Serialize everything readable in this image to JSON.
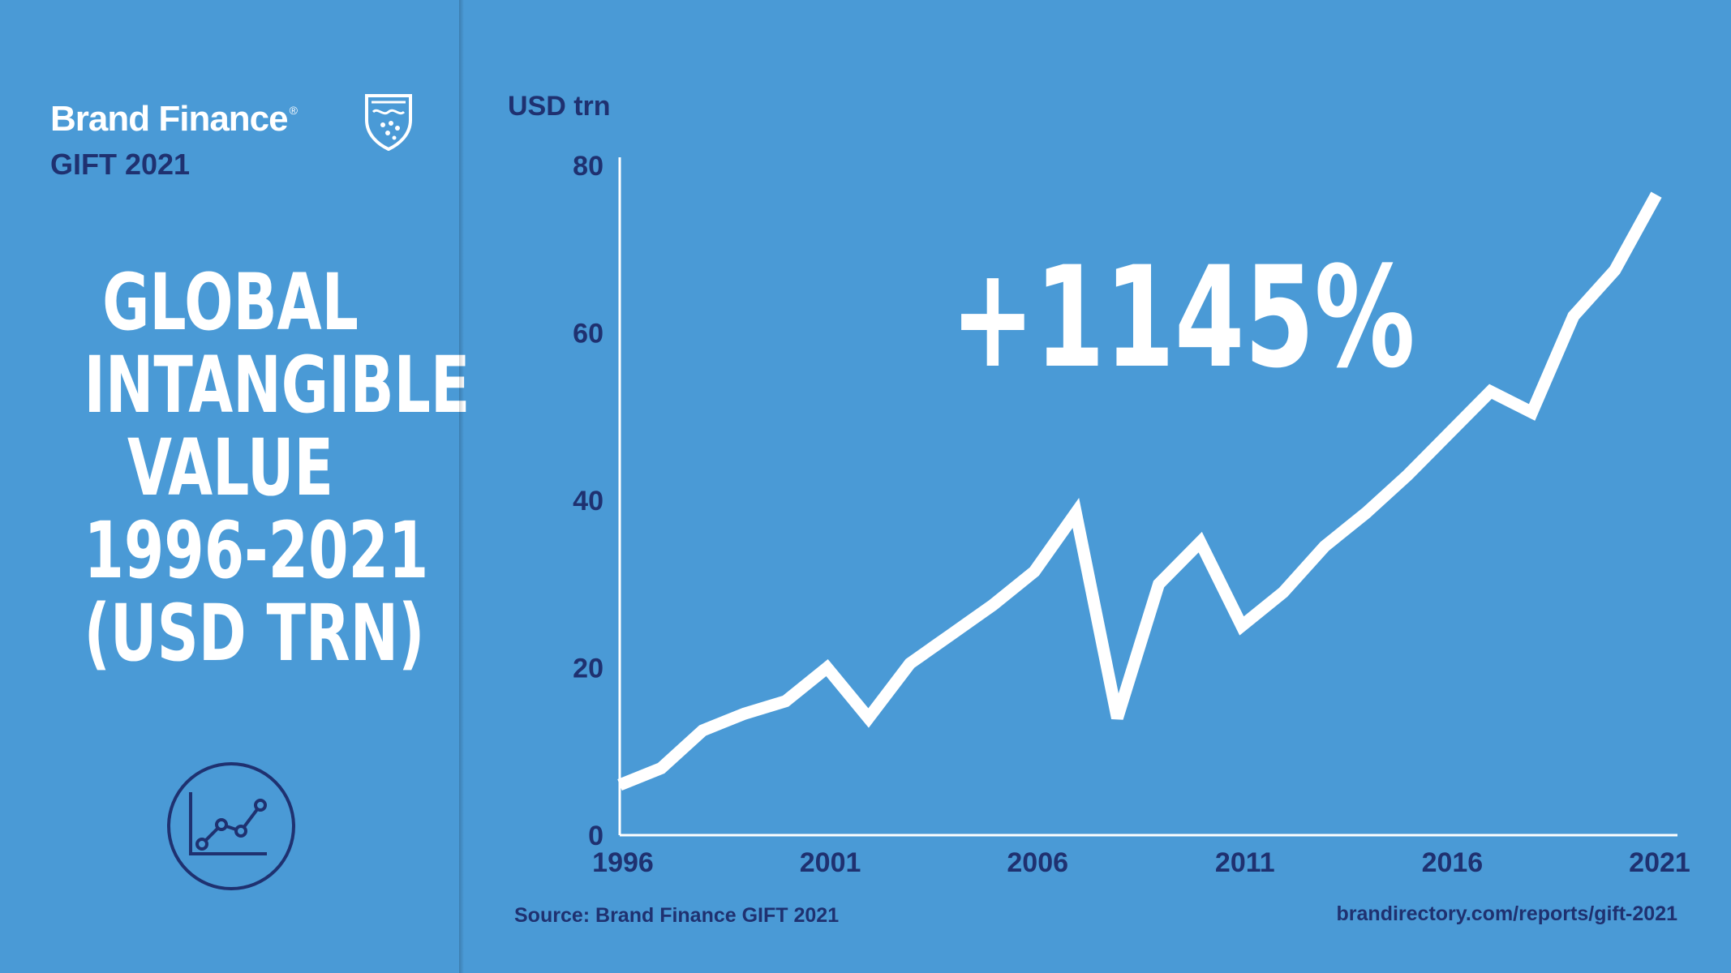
{
  "brand": {
    "name": "Brand Finance",
    "registered_mark": "®",
    "edition": "GIFT 2021"
  },
  "headline": {
    "lines": [
      "GLOBAL",
      "INTANGIBLE",
      "VALUE",
      "1996-2021",
      "(USD TRN)"
    ]
  },
  "growth_label": "+1145%",
  "footer": {
    "source": "Source: Brand Finance GIFT 2021",
    "url": "brandirectory.com/reports/gift-2021"
  },
  "colors": {
    "background": "#4a9ad6",
    "accent_dark": "#1f3170",
    "line": "#ffffff"
  },
  "chart_data": {
    "type": "line",
    "title": "Global Intangible Value 1996-2021 (USD trn)",
    "ylabel": "USD trn",
    "xlabel": "",
    "ylim": [
      0,
      80
    ],
    "xlim": [
      1996,
      2021
    ],
    "yticks": [
      0,
      20,
      40,
      60,
      80
    ],
    "xticks": [
      1996,
      2001,
      2006,
      2011,
      2016,
      2021
    ],
    "grid": false,
    "series": [
      {
        "name": "Global intangible value",
        "x": [
          1996,
          1997,
          1998,
          1999,
          2000,
          2001,
          2002,
          2003,
          2004,
          2005,
          2006,
          2007,
          2008,
          2009,
          2010,
          2011,
          2012,
          2013,
          2014,
          2015,
          2016,
          2017,
          2018,
          2019,
          2020,
          2021
        ],
        "values": [
          6,
          8,
          12.5,
          14.5,
          16,
          20,
          14,
          20.5,
          24,
          27.5,
          31.5,
          38.5,
          14,
          30,
          35,
          25,
          29,
          34.5,
          38.5,
          43,
          48,
          53,
          50.5,
          62,
          67.5,
          76.5
        ]
      }
    ]
  }
}
